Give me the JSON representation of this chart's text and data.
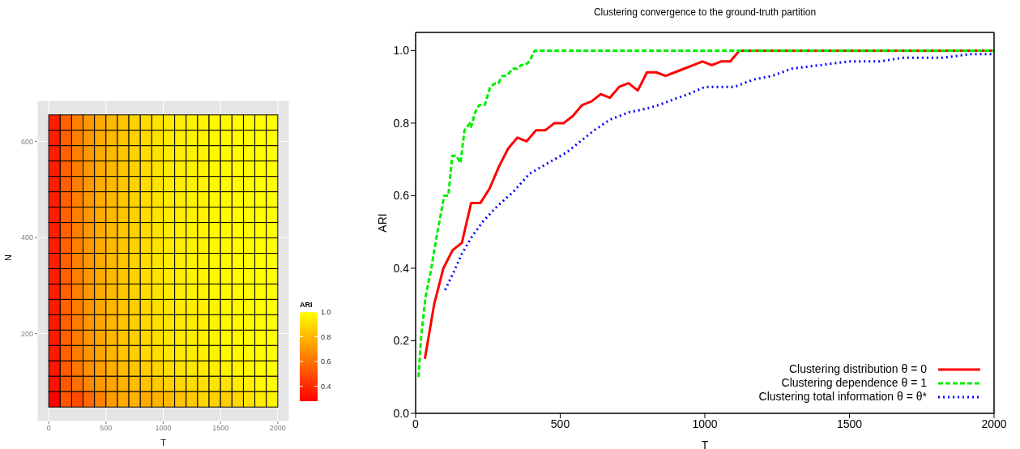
{
  "chart_data": [
    {
      "type": "heatmap",
      "xlabel": "T",
      "ylabel": "N",
      "clabel": "ARI",
      "grid": true,
      "xlim": [
        -100,
        2100
      ],
      "ylim": [
        17,
        685
      ],
      "xticks": [
        0,
        500,
        1000,
        1500,
        2000
      ],
      "yticks": [
        200,
        400,
        600
      ],
      "x": [
        50,
        150,
        250,
        350,
        450,
        550,
        650,
        750,
        850,
        950,
        1050,
        1150,
        1250,
        1350,
        1450,
        1550,
        1650,
        1750,
        1850,
        1950
      ],
      "y": [
        639,
        607,
        575,
        543,
        511,
        479,
        447,
        415,
        383,
        351,
        319,
        287,
        255,
        223,
        191,
        159,
        127,
        95,
        63
      ],
      "colors": [
        "#ff0000",
        "#ffff00"
      ],
      "clim": [
        0.28,
        1.0
      ],
      "cticks": [
        0.4,
        0.6,
        0.8,
        {
          "value": 1.0,
          "label": "1.0"
        }
      ],
      "cells": [
        [
          0.36,
          0.55,
          0.64,
          0.71,
          0.76,
          0.8,
          0.84,
          0.87,
          0.9,
          0.92,
          0.94,
          0.95,
          0.96,
          0.97,
          0.98,
          0.98,
          0.99,
          0.99,
          1.0,
          1.0
        ],
        [
          0.36,
          0.55,
          0.64,
          0.71,
          0.76,
          0.8,
          0.84,
          0.87,
          0.9,
          0.92,
          0.94,
          0.95,
          0.96,
          0.97,
          0.98,
          0.98,
          0.99,
          0.99,
          1.0,
          1.0
        ],
        [
          0.36,
          0.55,
          0.64,
          0.71,
          0.76,
          0.8,
          0.84,
          0.87,
          0.9,
          0.92,
          0.94,
          0.95,
          0.96,
          0.97,
          0.98,
          0.98,
          0.99,
          0.99,
          1.0,
          1.0
        ],
        [
          0.36,
          0.55,
          0.64,
          0.71,
          0.76,
          0.8,
          0.84,
          0.87,
          0.9,
          0.92,
          0.94,
          0.95,
          0.96,
          0.97,
          0.98,
          0.98,
          0.99,
          0.99,
          1.0,
          1.0
        ],
        [
          0.36,
          0.55,
          0.64,
          0.71,
          0.76,
          0.8,
          0.84,
          0.87,
          0.9,
          0.92,
          0.94,
          0.95,
          0.96,
          0.97,
          0.98,
          0.98,
          0.99,
          0.99,
          1.0,
          1.0
        ],
        [
          0.36,
          0.55,
          0.64,
          0.71,
          0.76,
          0.8,
          0.84,
          0.87,
          0.9,
          0.92,
          0.94,
          0.95,
          0.96,
          0.97,
          0.98,
          0.98,
          0.99,
          0.99,
          1.0,
          1.0
        ],
        [
          0.36,
          0.55,
          0.64,
          0.71,
          0.76,
          0.8,
          0.84,
          0.87,
          0.9,
          0.92,
          0.94,
          0.95,
          0.96,
          0.97,
          0.98,
          0.98,
          0.99,
          0.99,
          1.0,
          1.0
        ],
        [
          0.36,
          0.55,
          0.64,
          0.71,
          0.76,
          0.8,
          0.84,
          0.87,
          0.9,
          0.92,
          0.94,
          0.95,
          0.96,
          0.97,
          0.98,
          0.98,
          0.99,
          0.99,
          1.0,
          1.0
        ],
        [
          0.36,
          0.55,
          0.64,
          0.71,
          0.76,
          0.8,
          0.84,
          0.87,
          0.9,
          0.92,
          0.94,
          0.95,
          0.96,
          0.97,
          0.98,
          0.98,
          0.99,
          0.99,
          1.0,
          1.0
        ],
        [
          0.36,
          0.55,
          0.64,
          0.71,
          0.76,
          0.8,
          0.84,
          0.87,
          0.9,
          0.92,
          0.94,
          0.95,
          0.96,
          0.97,
          0.98,
          0.98,
          0.99,
          0.99,
          1.0,
          1.0
        ],
        [
          0.36,
          0.55,
          0.64,
          0.71,
          0.76,
          0.8,
          0.84,
          0.87,
          0.9,
          0.92,
          0.94,
          0.95,
          0.96,
          0.97,
          0.98,
          0.98,
          0.99,
          0.99,
          1.0,
          1.0
        ],
        [
          0.36,
          0.55,
          0.64,
          0.71,
          0.76,
          0.8,
          0.84,
          0.87,
          0.9,
          0.92,
          0.94,
          0.95,
          0.96,
          0.97,
          0.98,
          0.98,
          0.99,
          0.99,
          1.0,
          1.0
        ],
        [
          0.35,
          0.55,
          0.63,
          0.7,
          0.75,
          0.79,
          0.83,
          0.86,
          0.89,
          0.91,
          0.93,
          0.94,
          0.95,
          0.96,
          0.97,
          0.98,
          0.98,
          0.99,
          0.99,
          1.0
        ],
        [
          0.35,
          0.55,
          0.63,
          0.7,
          0.75,
          0.79,
          0.83,
          0.86,
          0.89,
          0.91,
          0.93,
          0.94,
          0.95,
          0.96,
          0.97,
          0.98,
          0.98,
          0.99,
          0.99,
          1.0
        ],
        [
          0.35,
          0.55,
          0.63,
          0.7,
          0.75,
          0.79,
          0.83,
          0.86,
          0.89,
          0.91,
          0.93,
          0.94,
          0.95,
          0.96,
          0.97,
          0.98,
          0.98,
          0.99,
          0.99,
          1.0
        ],
        [
          0.35,
          0.55,
          0.63,
          0.7,
          0.75,
          0.79,
          0.83,
          0.86,
          0.89,
          0.91,
          0.93,
          0.94,
          0.95,
          0.96,
          0.97,
          0.98,
          0.98,
          0.99,
          0.99,
          1.0
        ],
        [
          0.34,
          0.54,
          0.62,
          0.69,
          0.73,
          0.77,
          0.81,
          0.84,
          0.86,
          0.88,
          0.9,
          0.92,
          0.93,
          0.94,
          0.95,
          0.96,
          0.97,
          0.98,
          0.99,
          1.0
        ],
        [
          0.33,
          0.53,
          0.6,
          0.66,
          0.71,
          0.74,
          0.78,
          0.81,
          0.83,
          0.85,
          0.87,
          0.88,
          0.9,
          0.91,
          0.92,
          0.92,
          0.94,
          0.96,
          0.98,
          0.99
        ],
        [
          0.28,
          0.52,
          0.49,
          0.57,
          0.64,
          0.72,
          0.76,
          0.78,
          0.76,
          0.79,
          0.8,
          0.83,
          0.85,
          0.88,
          0.87,
          0.86,
          0.89,
          0.92,
          0.94,
          0.97
        ]
      ]
    },
    {
      "type": "line",
      "title": "Clustering convergence to the ground-truth partition",
      "xlabel": "T",
      "ylabel": "ARI",
      "xlim": [
        0,
        2000
      ],
      "ylim": [
        0,
        1.05
      ],
      "xticks": [
        0,
        500,
        1000,
        1500,
        2000
      ],
      "yticks": [
        {
          "value": 0,
          "label": "0.0"
        },
        0.2,
        0.4,
        0.6,
        0.8,
        {
          "value": 1.0,
          "label": "1.0"
        }
      ],
      "legend": "bottom right",
      "series": [
        {
          "name": "Clustering distribution θ = 0",
          "color": "#ff0000",
          "line_style": "solid",
          "x": [
            32,
            64,
            96,
            128,
            160,
            192,
            224,
            256,
            288,
            320,
            352,
            384,
            416,
            448,
            480,
            512,
            544,
            576,
            608,
            640,
            672,
            704,
            736,
            768,
            800,
            832,
            864,
            896,
            928,
            960,
            992,
            1024,
            1056,
            1088,
            1120,
            2000
          ],
          "values": [
            0.15,
            0.3,
            0.4,
            0.45,
            0.47,
            0.58,
            0.58,
            0.62,
            0.68,
            0.73,
            0.76,
            0.75,
            0.78,
            0.78,
            0.8,
            0.8,
            0.82,
            0.85,
            0.86,
            0.88,
            0.87,
            0.9,
            0.91,
            0.89,
            0.94,
            0.94,
            0.93,
            0.94,
            0.95,
            0.96,
            0.97,
            0.96,
            0.97,
            0.97,
            1.0,
            1.0
          ]
        },
        {
          "name": "Clustering dependence θ = 1",
          "color": "#00ee00",
          "line_style": "dashed",
          "x": [
            10,
            19,
            34,
            52,
            71,
            85,
            99,
            113,
            127,
            141,
            155,
            169,
            188,
            192,
            206,
            220,
            239,
            258,
            276,
            286,
            300,
            314,
            337,
            351,
            365,
            379,
            393,
            412,
            2000
          ],
          "values": [
            0.1,
            0.21,
            0.32,
            0.39,
            0.48,
            0.54,
            0.6,
            0.6,
            0.71,
            0.71,
            0.69,
            0.78,
            0.8,
            0.79,
            0.83,
            0.85,
            0.85,
            0.9,
            0.91,
            0.91,
            0.93,
            0.93,
            0.95,
            0.95,
            0.96,
            0.96,
            0.97,
            1.0,
            1.0
          ]
        },
        {
          "name": "Clustering total information θ = θ*",
          "color": "#0000ff",
          "line_style": "dotted",
          "x": [
            102,
            132,
            160,
            197,
            234,
            281,
            337,
            393,
            458,
            524,
            570,
            617,
            673,
            739,
            799,
            841,
            907,
            944,
            1000,
            1103,
            1168,
            1233,
            1299,
            1401,
            1495,
            1607,
            1681,
            1728,
            1822,
            1915,
            1999
          ],
          "values": [
            0.34,
            0.39,
            0.44,
            0.49,
            0.53,
            0.57,
            0.61,
            0.66,
            0.69,
            0.72,
            0.75,
            0.78,
            0.81,
            0.83,
            0.84,
            0.85,
            0.87,
            0.88,
            0.9,
            0.9,
            0.92,
            0.93,
            0.95,
            0.96,
            0.97,
            0.97,
            0.98,
            0.98,
            0.98,
            0.99,
            0.99
          ]
        }
      ]
    }
  ]
}
